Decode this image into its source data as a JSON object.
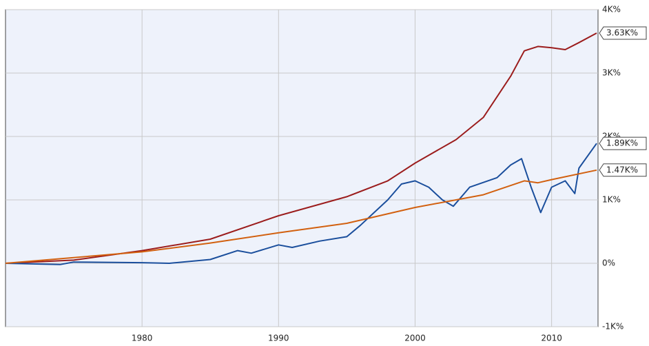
{
  "chart_data": {
    "type": "line",
    "xlim": [
      1970,
      2013.4
    ],
    "xticks": [
      1980,
      1990,
      2000,
      2010
    ],
    "ylim": [
      -1000,
      4000
    ],
    "yticks": [
      {
        "value": -1000,
        "label": "-1K%"
      },
      {
        "value": 0,
        "label": "0%"
      },
      {
        "value": 1000,
        "label": "1K%"
      },
      {
        "value": 2000,
        "label": "2K%"
      },
      {
        "value": 3000,
        "label": "3K%"
      },
      {
        "value": 4000,
        "label": "4K%"
      }
    ],
    "grid": true,
    "series": [
      {
        "color": "#9b1c1c",
        "end_label": "3.63K%",
        "x": [
          1970,
          1975,
          1980,
          1985,
          1990,
          1995,
          1998,
          2000,
          2003,
          2005,
          2007,
          2008,
          2009,
          2010,
          2011,
          2012,
          2013.3
        ],
        "values": [
          0,
          50,
          200,
          380,
          750,
          1050,
          1300,
          1580,
          1950,
          2300,
          2950,
          3350,
          3420,
          3400,
          3370,
          3480,
          3630
        ]
      },
      {
        "color": "#1a4e9c",
        "end_label": "1.89K%",
        "x": [
          1970,
          1974,
          1975,
          1980,
          1982,
          1985,
          1987,
          1988,
          1990,
          1991,
          1993,
          1995,
          1996,
          1997,
          1998,
          1999,
          2000,
          2001,
          2002,
          2002.8,
          2004,
          2006,
          2007,
          2007.8,
          2008.5,
          2009.2,
          2010,
          2011,
          2011.7,
          2012,
          2013.3
        ],
        "values": [
          0,
          -20,
          20,
          10,
          0,
          60,
          200,
          160,
          290,
          250,
          350,
          420,
          600,
          800,
          1000,
          1250,
          1300,
          1200,
          1000,
          900,
          1200,
          1350,
          1550,
          1650,
          1200,
          800,
          1200,
          1300,
          1100,
          1500,
          1890
        ]
      },
      {
        "color": "#d2600f",
        "end_label": "1.47K%",
        "x": [
          1970,
          1980,
          1985,
          1990,
          1995,
          2000,
          2005,
          2008,
          2009,
          2010,
          2013.3
        ],
        "values": [
          0,
          180,
          320,
          480,
          630,
          880,
          1080,
          1300,
          1270,
          1320,
          1470
        ]
      }
    ]
  }
}
